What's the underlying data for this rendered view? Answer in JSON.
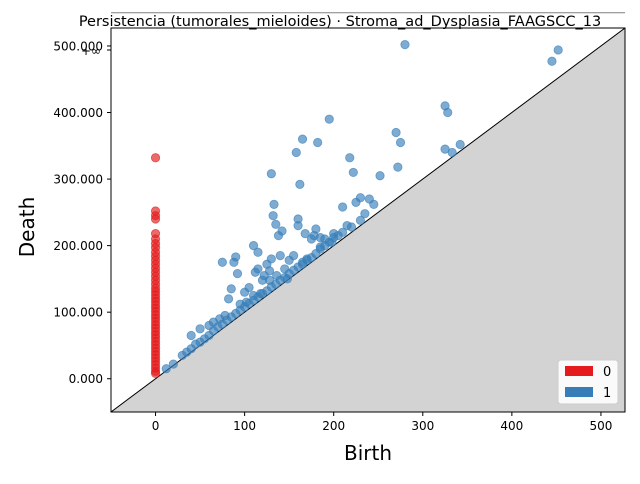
{
  "chart_data": {
    "type": "scatter",
    "title": "Persistencia (tumorales_mieloides) · Stroma_ad_Dysplasia_FAAGSCC_13",
    "xlabel": "Birth",
    "ylabel": "Death",
    "xlim": [
      -50,
      527
    ],
    "ylim": [
      -50,
      527
    ],
    "infinity_death": 550,
    "infinity_label": "+∞",
    "x_ticks": [
      0,
      100,
      200,
      300,
      400,
      500
    ],
    "x_tick_labels": [
      "0",
      "100",
      "200",
      "300",
      "400",
      "500"
    ],
    "y_ticks": [
      0,
      100,
      200,
      300,
      400,
      500
    ],
    "y_tick_labels": [
      "0.000",
      "100.000",
      "200.000",
      "300.000",
      "400.000",
      "500.000"
    ],
    "legend": {
      "position": "lower-right",
      "entries": [
        "0",
        "1"
      ]
    },
    "colors": {
      "h0": "#e41a1c",
      "h1": "#377eb8",
      "diagonal_fill": "#d3d3d3",
      "infinity_line": "#808080"
    },
    "series": [
      {
        "name": "0",
        "points": [
          [
            0,
            550
          ],
          [
            0,
            332
          ],
          [
            0,
            252
          ],
          [
            0,
            245
          ],
          [
            0,
            240
          ],
          [
            0,
            218
          ],
          [
            0,
            210
          ],
          [
            0,
            203
          ],
          [
            0,
            197
          ],
          [
            0,
            190
          ],
          [
            0,
            184
          ],
          [
            0,
            178
          ],
          [
            0,
            172
          ],
          [
            0,
            166
          ],
          [
            0,
            160
          ],
          [
            0,
            154
          ],
          [
            0,
            148
          ],
          [
            0,
            142
          ],
          [
            0,
            136
          ],
          [
            0,
            131
          ],
          [
            0,
            126
          ],
          [
            0,
            121
          ],
          [
            0,
            116
          ],
          [
            0,
            111
          ],
          [
            0,
            106
          ],
          [
            0,
            101
          ],
          [
            0,
            96
          ],
          [
            0,
            91
          ],
          [
            0,
            86
          ],
          [
            0,
            81
          ],
          [
            0,
            76
          ],
          [
            0,
            71
          ],
          [
            0,
            66
          ],
          [
            0,
            61
          ],
          [
            0,
            56
          ],
          [
            0,
            51
          ],
          [
            0,
            46
          ],
          [
            0,
            41
          ],
          [
            0,
            36
          ],
          [
            0,
            31
          ],
          [
            0,
            26
          ],
          [
            0,
            21
          ],
          [
            0,
            16
          ],
          [
            0,
            11
          ],
          [
            0,
            8
          ]
        ]
      },
      {
        "name": "1",
        "points": [
          [
            12,
            15
          ],
          [
            20,
            22
          ],
          [
            30,
            35
          ],
          [
            35,
            40
          ],
          [
            40,
            45
          ],
          [
            45,
            52
          ],
          [
            50,
            55
          ],
          [
            55,
            60
          ],
          [
            60,
            65
          ],
          [
            65,
            72
          ],
          [
            70,
            78
          ],
          [
            75,
            82
          ],
          [
            80,
            88
          ],
          [
            85,
            93
          ],
          [
            90,
            98
          ],
          [
            95,
            103
          ],
          [
            100,
            108
          ],
          [
            105,
            113
          ],
          [
            110,
            118
          ],
          [
            115,
            123
          ],
          [
            120,
            128
          ],
          [
            125,
            132
          ],
          [
            130,
            138
          ],
          [
            135,
            142
          ],
          [
            140,
            148
          ],
          [
            145,
            152
          ],
          [
            150,
            158
          ],
          [
            155,
            163
          ],
          [
            160,
            168
          ],
          [
            165,
            172
          ],
          [
            170,
            178
          ],
          [
            175,
            182
          ],
          [
            180,
            188
          ],
          [
            185,
            195
          ],
          [
            190,
            200
          ],
          [
            195,
            205
          ],
          [
            200,
            212
          ],
          [
            210,
            220
          ],
          [
            220,
            228
          ],
          [
            230,
            238
          ],
          [
            40,
            65
          ],
          [
            50,
            75
          ],
          [
            60,
            80
          ],
          [
            65,
            85
          ],
          [
            72,
            90
          ],
          [
            78,
            95
          ],
          [
            82,
            120
          ],
          [
            85,
            135
          ],
          [
            88,
            175
          ],
          [
            90,
            183
          ],
          [
            75,
            175
          ],
          [
            92,
            158
          ],
          [
            100,
            130
          ],
          [
            105,
            137
          ],
          [
            110,
            125
          ],
          [
            112,
            160
          ],
          [
            115,
            165
          ],
          [
            118,
            128
          ],
          [
            120,
            148
          ],
          [
            122,
            155
          ],
          [
            125,
            172
          ],
          [
            128,
            162
          ],
          [
            130,
            180
          ],
          [
            132,
            245
          ],
          [
            133,
            262
          ],
          [
            135,
            232
          ],
          [
            138,
            215
          ],
          [
            140,
            185
          ],
          [
            142,
            222
          ],
          [
            145,
            165
          ],
          [
            148,
            150
          ],
          [
            150,
            178
          ],
          [
            155,
            185
          ],
          [
            158,
            340
          ],
          [
            160,
            240
          ],
          [
            162,
            292
          ],
          [
            165,
            360
          ],
          [
            168,
            218
          ],
          [
            170,
            180
          ],
          [
            175,
            210
          ],
          [
            178,
            215
          ],
          [
            180,
            225
          ],
          [
            182,
            355
          ],
          [
            185,
            212
          ],
          [
            190,
            210
          ],
          [
            195,
            390
          ],
          [
            198,
            205
          ],
          [
            200,
            218
          ],
          [
            210,
            258
          ],
          [
            215,
            230
          ],
          [
            218,
            332
          ],
          [
            222,
            310
          ],
          [
            225,
            265
          ],
          [
            230,
            272
          ],
          [
            235,
            248
          ],
          [
            240,
            270
          ],
          [
            245,
            262
          ],
          [
            252,
            305
          ],
          [
            270,
            370
          ],
          [
            272,
            318
          ],
          [
            275,
            355
          ],
          [
            280,
            502
          ],
          [
            325,
            410
          ],
          [
            328,
            400
          ],
          [
            325,
            345
          ],
          [
            333,
            340
          ],
          [
            342,
            352
          ],
          [
            445,
            477
          ],
          [
            452,
            494
          ],
          [
            110,
            200
          ],
          [
            115,
            190
          ],
          [
            130,
            308
          ],
          [
            160,
            230
          ],
          [
            165,
            175
          ],
          [
            185,
            198
          ],
          [
            205,
            215
          ],
          [
            128,
            148
          ],
          [
            136,
            155
          ],
          [
            95,
            112
          ],
          [
            102,
            115
          ]
        ]
      }
    ]
  }
}
